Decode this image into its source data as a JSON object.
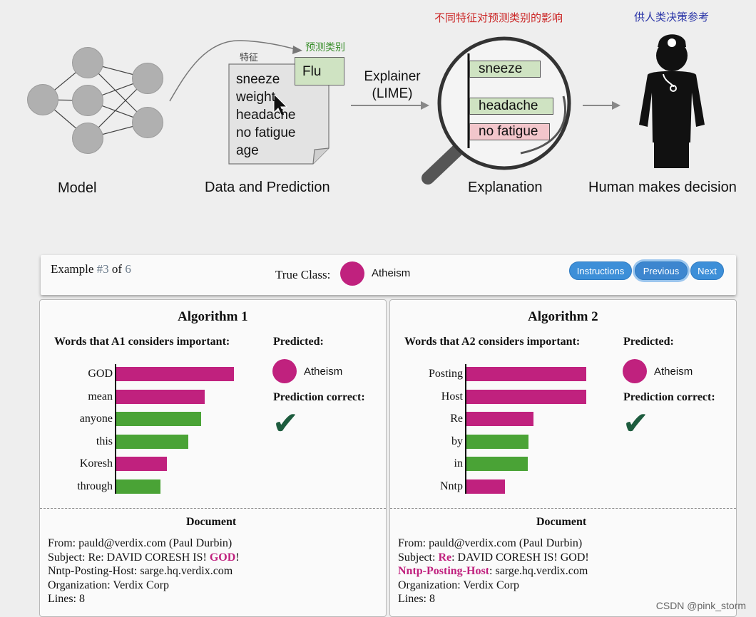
{
  "diagram": {
    "model_label": "Model",
    "data_label": "Data and Prediction",
    "explainer_label_line1": "Explainer",
    "explainer_label_line2": "(LIME)",
    "explanation_label": "Explanation",
    "human_label": "Human makes decision",
    "features_note": "特征",
    "predicted_class_note": "预测类别",
    "feature_influence_note": "不同特征对预测类别的影响",
    "reference_note": "供人类决策参考",
    "prediction": "Flu",
    "features": [
      "sneeze",
      "weight",
      "headache",
      "no fatigue",
      "age"
    ],
    "lens_bars": [
      {
        "label": "sneeze",
        "color": "#cfe3c2"
      },
      {
        "label": "headache",
        "color": "#cfe3c2"
      },
      {
        "label": "no fatigue",
        "color": "#f2c6cb"
      }
    ]
  },
  "header": {
    "example_prefix": "Example ",
    "example_num": "#3",
    "example_mid": " of ",
    "example_total": "6",
    "true_class_label": "True Class:",
    "true_class_value": "Atheism",
    "class_color": "#c0217e",
    "buttons": {
      "instructions": "Instructions",
      "previous": "Previous",
      "next": "Next"
    }
  },
  "algorithms": [
    {
      "title": "Algorithm 1",
      "words_title": "Words that A1 considers important:",
      "predicted_title": "Predicted:",
      "predicted_value": "Atheism",
      "correct_title": "Prediction correct:",
      "check": "✔",
      "words": [
        {
          "word": "GOD",
          "value": 0.98,
          "class": "atheism"
        },
        {
          "word": "mean",
          "value": 0.74,
          "class": "atheism"
        },
        {
          "word": "anyone",
          "value": 0.71,
          "class": "christian"
        },
        {
          "word": "this",
          "value": 0.6,
          "class": "christian"
        },
        {
          "word": "Koresh",
          "value": 0.42,
          "class": "atheism"
        },
        {
          "word": "through",
          "value": 0.37,
          "class": "christian"
        }
      ],
      "doc_title": "Document",
      "doc_lines": [
        [
          {
            "t": "From: pauld@verdix.com (Paul Durbin)"
          }
        ],
        [
          {
            "t": "Subject: Re: DAVID CORESH IS! "
          },
          {
            "t": "GOD",
            "hl": true
          },
          {
            "t": "!"
          }
        ],
        [
          {
            "t": "Nntp-Posting-Host: sarge.hq.verdix.com"
          }
        ],
        [
          {
            "t": "Organization: Verdix Corp"
          }
        ],
        [
          {
            "t": "Lines: 8"
          }
        ]
      ]
    },
    {
      "title": "Algorithm 2",
      "words_title": "Words that A2 considers important:",
      "predicted_title": "Predicted:",
      "predicted_value": "Atheism",
      "correct_title": "Prediction correct:",
      "check": "✔",
      "words": [
        {
          "word": "Posting",
          "value": 1.0,
          "class": "atheism"
        },
        {
          "word": "Host",
          "value": 1.0,
          "class": "atheism"
        },
        {
          "word": "Re",
          "value": 0.56,
          "class": "atheism"
        },
        {
          "word": "by",
          "value": 0.52,
          "class": "christian"
        },
        {
          "word": "in",
          "value": 0.51,
          "class": "christian"
        },
        {
          "word": "Nntp",
          "value": 0.32,
          "class": "atheism"
        }
      ],
      "doc_title": "Document",
      "doc_lines": [
        [
          {
            "t": "From: pauld@verdix.com (Paul Durbin)"
          }
        ],
        [
          {
            "t": "Subject: "
          },
          {
            "t": "Re",
            "hl": true
          },
          {
            "t": ": DAVID CORESH IS! GOD!"
          }
        ],
        [
          {
            "t": "Nntp-Posting-Host",
            "hl": true
          },
          {
            "t": ": sarge.hq.verdix.com"
          }
        ],
        [
          {
            "t": "Organization: Verdix Corp"
          }
        ],
        [
          {
            "t": "Lines: 8"
          }
        ]
      ]
    }
  ],
  "colors": {
    "atheism": "#c0217e",
    "christian": "#4aa336",
    "check": "#1d5c3e"
  },
  "watermark": "CSDN @pink_storm"
}
